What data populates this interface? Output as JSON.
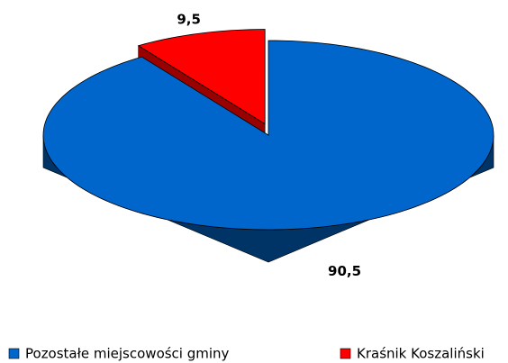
{
  "chart_data": {
    "type": "pie3d",
    "categories": [
      "Pozostałe miejscowości gminy",
      "Kraśnik Koszaliński"
    ],
    "values": [
      90.5,
      9.5
    ],
    "value_labels": [
      "90,5",
      "9,5"
    ],
    "colors": [
      "#0066cc",
      "#ff0000"
    ],
    "side_colors": [
      "#003366",
      "#990000"
    ],
    "explode": [
      false,
      true
    ],
    "legend": "bottom"
  }
}
